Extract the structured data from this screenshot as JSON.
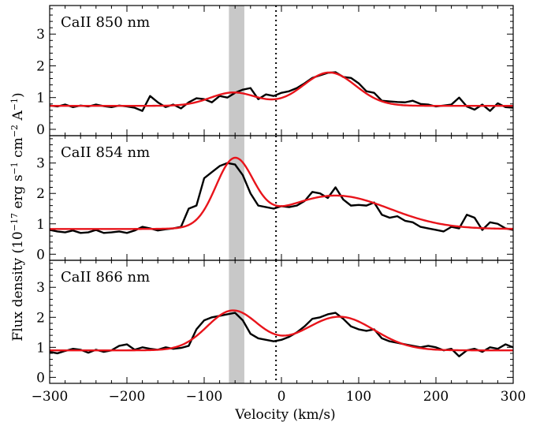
{
  "colors": {
    "observed": "#000000",
    "model": "#e8141b",
    "band": "#c8c8c8",
    "reference_line": "#000000"
  },
  "chart_data": [
    {
      "type": "line",
      "panel_label": "CaII 850 nm",
      "xlim": [
        -300,
        300
      ],
      "ylim": [
        -0.2,
        3.9
      ],
      "yticks": [
        0,
        1,
        2,
        3
      ],
      "shaded_band": [
        -68,
        -48
      ],
      "reference_line_x": -7,
      "series": [
        {
          "role": "observed",
          "x": [
            -300,
            -290,
            -280,
            -270,
            -260,
            -250,
            -240,
            -230,
            -220,
            -210,
            -200,
            -190,
            -180,
            -170,
            -160,
            -150,
            -140,
            -130,
            -120,
            -110,
            -100,
            -90,
            -80,
            -70,
            -60,
            -50,
            -40,
            -30,
            -20,
            -10,
            0,
            10,
            20,
            30,
            40,
            50,
            60,
            70,
            80,
            90,
            100,
            110,
            120,
            130,
            140,
            150,
            160,
            170,
            180,
            190,
            200,
            210,
            220,
            230,
            240,
            250,
            260,
            270,
            280,
            290,
            300
          ],
          "y": [
            0.75,
            0.72,
            0.78,
            0.7,
            0.75,
            0.72,
            0.78,
            0.73,
            0.7,
            0.75,
            0.72,
            0.68,
            0.58,
            1.05,
            0.85,
            0.7,
            0.78,
            0.66,
            0.85,
            0.98,
            0.95,
            0.85,
            1.05,
            1.0,
            1.15,
            1.25,
            1.3,
            0.95,
            1.1,
            1.05,
            1.15,
            1.2,
            1.3,
            1.45,
            1.62,
            1.7,
            1.78,
            1.8,
            1.65,
            1.62,
            1.45,
            1.2,
            1.15,
            0.9,
            0.88,
            0.86,
            0.85,
            0.9,
            0.8,
            0.78,
            0.72,
            0.75,
            0.78,
            1.0,
            0.72,
            0.62,
            0.78,
            0.58,
            0.82,
            0.7,
            0.68
          ]
        },
        {
          "role": "model",
          "x": [],
          "y": [],
          "components": [
            {
              "center": -62,
              "amplitude": 0.42,
              "sigma": 30
            },
            {
              "center": 62,
              "amplitude": 1.05,
              "sigma": 34
            }
          ],
          "baseline": 0.74
        }
      ]
    },
    {
      "type": "line",
      "panel_label": "CaII 854 nm",
      "xlim": [
        -300,
        300
      ],
      "ylim": [
        -0.2,
        3.9
      ],
      "yticks": [
        0,
        1,
        2,
        3
      ],
      "shaded_band": [
        -68,
        -48
      ],
      "reference_line_x": -7,
      "series": [
        {
          "role": "observed",
          "x": [
            -300,
            -290,
            -280,
            -270,
            -260,
            -250,
            -240,
            -230,
            -220,
            -210,
            -200,
            -190,
            -180,
            -170,
            -160,
            -150,
            -140,
            -130,
            -120,
            -110,
            -100,
            -90,
            -80,
            -70,
            -60,
            -50,
            -40,
            -30,
            -20,
            -10,
            0,
            10,
            20,
            30,
            40,
            50,
            60,
            70,
            80,
            90,
            100,
            110,
            120,
            130,
            140,
            150,
            160,
            170,
            180,
            190,
            200,
            210,
            220,
            230,
            240,
            250,
            260,
            270,
            280,
            290,
            300
          ],
          "y": [
            0.8,
            0.75,
            0.72,
            0.78,
            0.7,
            0.72,
            0.8,
            0.7,
            0.72,
            0.75,
            0.7,
            0.78,
            0.9,
            0.85,
            0.78,
            0.82,
            0.85,
            0.9,
            1.5,
            1.6,
            2.5,
            2.7,
            2.9,
            3.0,
            2.95,
            2.6,
            2.0,
            1.6,
            1.55,
            1.5,
            1.58,
            1.55,
            1.6,
            1.75,
            2.05,
            2.0,
            1.85,
            2.2,
            1.8,
            1.6,
            1.62,
            1.6,
            1.7,
            1.3,
            1.2,
            1.25,
            1.1,
            1.05,
            0.9,
            0.85,
            0.8,
            0.75,
            0.9,
            0.85,
            1.3,
            1.2,
            0.8,
            1.05,
            1.0,
            0.85,
            0.8
          ]
        },
        {
          "role": "model",
          "x": [],
          "y": [],
          "components": [
            {
              "center": -61,
              "amplitude": 2.15,
              "sigma": 24
            },
            {
              "center": 70,
              "amplitude": 1.1,
              "sigma": 70
            }
          ],
          "baseline": 0.83
        }
      ]
    },
    {
      "type": "line",
      "panel_label": "CaII 866 nm",
      "xlim": [
        -300,
        300
      ],
      "ylim": [
        -0.2,
        3.9
      ],
      "yticks": [
        0,
        1,
        2,
        3
      ],
      "shaded_band": [
        -68,
        -48
      ],
      "reference_line_x": -7,
      "series": [
        {
          "role": "observed",
          "x": [
            -300,
            -290,
            -280,
            -270,
            -260,
            -250,
            -240,
            -230,
            -220,
            -210,
            -200,
            -190,
            -180,
            -170,
            -160,
            -150,
            -140,
            -130,
            -120,
            -110,
            -100,
            -90,
            -80,
            -70,
            -60,
            -50,
            -40,
            -30,
            -20,
            -10,
            0,
            10,
            20,
            30,
            40,
            50,
            60,
            70,
            80,
            90,
            100,
            110,
            120,
            130,
            140,
            150,
            160,
            170,
            180,
            190,
            200,
            210,
            220,
            230,
            240,
            250,
            260,
            270,
            280,
            290,
            300
          ],
          "y": [
            0.85,
            0.8,
            0.88,
            0.95,
            0.92,
            0.82,
            0.92,
            0.85,
            0.9,
            1.05,
            1.1,
            0.92,
            1.0,
            0.95,
            0.92,
            1.0,
            0.95,
            0.98,
            1.05,
            1.6,
            1.9,
            2.0,
            2.05,
            2.1,
            2.15,
            1.9,
            1.45,
            1.3,
            1.25,
            1.2,
            1.25,
            1.35,
            1.5,
            1.7,
            1.95,
            2.0,
            2.1,
            2.15,
            1.95,
            1.7,
            1.6,
            1.55,
            1.6,
            1.3,
            1.2,
            1.15,
            1.1,
            1.05,
            1.0,
            1.05,
            1.0,
            0.9,
            0.95,
            0.7,
            0.9,
            0.95,
            0.85,
            1.0,
            0.95,
            1.1,
            1.0
          ]
        },
        {
          "role": "model",
          "x": [],
          "y": [],
          "components": [
            {
              "center": -63,
              "amplitude": 1.32,
              "sigma": 33
            },
            {
              "center": 75,
              "amplitude": 1.12,
              "sigma": 45
            }
          ],
          "baseline": 0.9
        }
      ]
    }
  ],
  "axes": {
    "xlabel": "Velocity (km/s)",
    "ylabel_main": "Flux density (10",
    "ylabel_exp1": "−17",
    "ylabel_mid1": " erg s",
    "ylabel_exp2": "−1",
    "ylabel_mid2": " cm",
    "ylabel_exp3": "−2",
    "ylabel_mid3": " A",
    "ylabel_exp4": "−1",
    "ylabel_end": ")",
    "xticks": [
      -300,
      -200,
      -100,
      0,
      100,
      200,
      300
    ],
    "xtick_labels": [
      "−300",
      "−200",
      "−100",
      "0",
      "100",
      "200",
      "300"
    ]
  }
}
